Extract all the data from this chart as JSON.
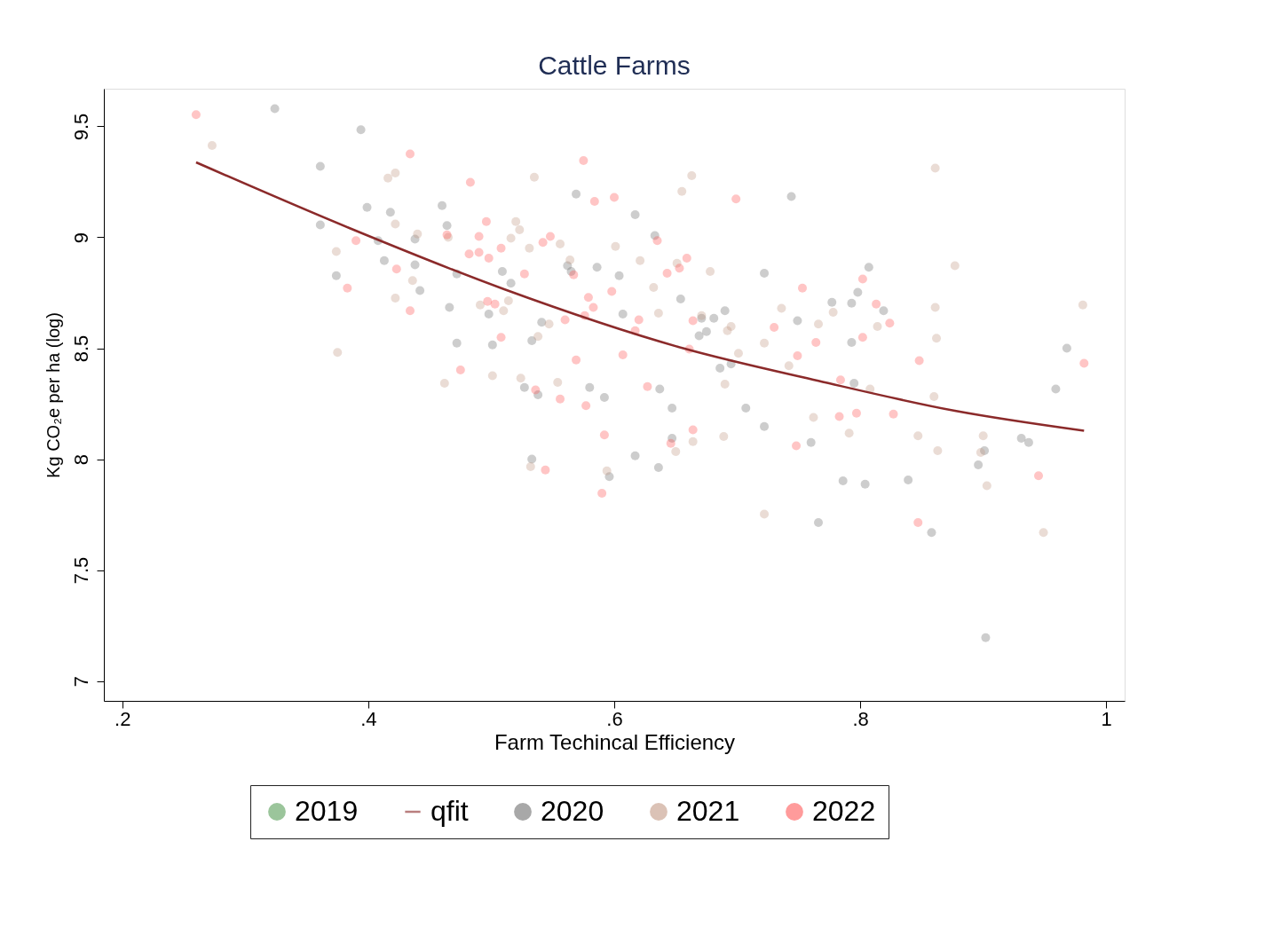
{
  "chart_data": {
    "type": "scatter",
    "title": "Cattle Farms",
    "xlabel": "Farm Techincal Efficiency",
    "ylabel": "Kg CO₂e per ha (log)",
    "xlim": [
      0.185,
      1.015
    ],
    "ylim": [
      6.91,
      9.67
    ],
    "xticks": [
      {
        "value": 0.2,
        "label": ".2"
      },
      {
        "value": 0.4,
        "label": ".4"
      },
      {
        "value": 0.6,
        "label": ".6"
      },
      {
        "value": 0.8,
        "label": ".8"
      },
      {
        "value": 1,
        "label": "1"
      }
    ],
    "yticks": [
      {
        "value": 7,
        "label": "7"
      },
      7.5,
      {
        "value": 8,
        "label": "8"
      },
      8.5,
      {
        "value": 9,
        "label": "9"
      },
      9.5
    ],
    "grid": false,
    "legend": "bottom",
    "series": [
      {
        "name": "2019",
        "color": "#5aa05a",
        "marker": "circle"
      },
      {
        "name": "qfit",
        "type": "line",
        "color": "#8b2a2a",
        "x": [
          0.26,
          0.385,
          0.51,
          0.656,
          0.766,
          0.877,
          0.982
        ],
        "values": [
          9.338,
          9.041,
          8.767,
          8.5,
          8.353,
          8.218,
          8.128
        ]
      },
      {
        "name": "2020",
        "color": "#707070",
        "marker": "circle",
        "x": [
          0.324,
          0.394,
          0.361,
          0.361,
          0.374,
          0.399,
          0.418,
          0.408,
          0.413,
          0.438,
          0.438,
          0.442,
          0.46,
          0.464,
          0.472,
          0.466,
          0.472,
          0.498,
          0.501,
          0.509,
          0.516,
          0.569,
          0.562,
          0.565,
          0.586,
          0.604,
          0.617,
          0.633,
          0.607,
          0.654,
          0.671,
          0.669,
          0.675,
          0.681,
          0.69,
          0.686,
          0.695,
          0.722,
          0.744,
          0.749,
          0.777,
          0.793,
          0.798,
          0.807,
          0.819,
          0.793,
          0.795,
          0.786,
          0.804,
          0.839,
          0.858,
          0.896,
          0.901,
          0.902,
          0.931,
          0.937,
          0.959,
          0.968,
          0.527,
          0.538,
          0.533,
          0.541,
          0.533,
          0.58,
          0.592,
          0.596,
          0.617,
          0.636,
          0.637,
          0.647,
          0.647,
          0.707,
          0.722,
          0.76,
          0.766
        ],
        "values": [
          9.58,
          9.485,
          9.32,
          9.056,
          8.827,
          9.135,
          9.113,
          8.985,
          8.895,
          8.992,
          8.876,
          8.76,
          9.143,
          9.053,
          8.835,
          8.684,
          8.523,
          8.654,
          8.515,
          8.846,
          8.793,
          9.195,
          8.872,
          8.846,
          8.865,
          8.827,
          9.102,
          9.008,
          8.654,
          8.722,
          8.635,
          8.556,
          8.575,
          8.635,
          8.669,
          8.41,
          8.429,
          8.838,
          9.184,
          8.624,
          8.707,
          8.703,
          8.752,
          8.865,
          8.669,
          8.526,
          8.342,
          7.902,
          7.887,
          7.906,
          7.669,
          7.974,
          8.038,
          7.195,
          8.094,
          8.075,
          8.316,
          8.5,
          8.323,
          8.29,
          8.0,
          8.617,
          8.534,
          8.323,
          8.278,
          7.921,
          8.015,
          7.962,
          8.316,
          8.23,
          8.094,
          8.23,
          8.147,
          8.075,
          7.714
        ]
      },
      {
        "name": "2021",
        "color": "#c49a86",
        "marker": "circle",
        "x": [
          0.273,
          0.416,
          0.422,
          0.422,
          0.44,
          0.436,
          0.422,
          0.374,
          0.375,
          0.462,
          0.465,
          0.491,
          0.501,
          0.51,
          0.514,
          0.516,
          0.52,
          0.523,
          0.531,
          0.535,
          0.524,
          0.538,
          0.547,
          0.556,
          0.554,
          0.564,
          0.601,
          0.621,
          0.632,
          0.636,
          0.651,
          0.655,
          0.663,
          0.678,
          0.671,
          0.692,
          0.695,
          0.701,
          0.69,
          0.689,
          0.65,
          0.664,
          0.594,
          0.532,
          0.722,
          0.736,
          0.742,
          0.766,
          0.778,
          0.762,
          0.791,
          0.808,
          0.814,
          0.861,
          0.877,
          0.861,
          0.862,
          0.86,
          0.847,
          0.863,
          0.9,
          0.898,
          0.903,
          0.981,
          0.949,
          0.722
        ],
        "values": [
          9.414,
          9.267,
          9.29,
          9.06,
          9.015,
          8.805,
          8.726,
          8.936,
          8.481,
          8.342,
          9.0,
          8.695,
          8.376,
          8.669,
          8.714,
          8.996,
          9.071,
          9.034,
          8.951,
          9.271,
          8.365,
          8.553,
          8.609,
          8.97,
          8.346,
          8.898,
          8.959,
          8.895,
          8.774,
          8.658,
          8.883,
          9.207,
          9.278,
          8.846,
          8.647,
          8.579,
          8.598,
          8.477,
          8.338,
          8.102,
          8.034,
          8.079,
          7.947,
          7.966,
          8.523,
          8.68,
          8.421,
          8.609,
          8.662,
          8.188,
          8.117,
          8.316,
          8.598,
          9.312,
          8.872,
          8.684,
          8.545,
          8.282,
          8.105,
          8.038,
          8.105,
          8.03,
          7.88,
          8.695,
          7.669,
          7.752
        ]
      },
      {
        "name": "2022",
        "color": "#ff5a5a",
        "marker": "circle",
        "x": [
          0.26,
          0.434,
          0.39,
          0.383,
          0.423,
          0.434,
          0.475,
          0.464,
          0.483,
          0.482,
          0.49,
          0.49,
          0.496,
          0.498,
          0.508,
          0.503,
          0.497,
          0.508,
          0.527,
          0.542,
          0.548,
          0.575,
          0.584,
          0.6,
          0.567,
          0.56,
          0.579,
          0.583,
          0.576,
          0.598,
          0.569,
          0.607,
          0.62,
          0.617,
          0.635,
          0.643,
          0.653,
          0.659,
          0.664,
          0.661,
          0.627,
          0.577,
          0.556,
          0.536,
          0.544,
          0.592,
          0.59,
          0.646,
          0.664,
          0.699,
          0.73,
          0.753,
          0.749,
          0.764,
          0.748,
          0.784,
          0.783,
          0.797,
          0.802,
          0.802,
          0.813,
          0.824,
          0.827,
          0.848,
          0.847,
          0.945,
          0.982
        ],
        "values": [
          9.553,
          9.376,
          8.985,
          8.771,
          8.857,
          8.669,
          8.402,
          9.011,
          9.248,
          8.925,
          9.004,
          8.932,
          9.071,
          8.906,
          8.951,
          8.699,
          8.711,
          8.549,
          8.835,
          8.977,
          9.004,
          9.346,
          9.162,
          9.18,
          8.831,
          8.628,
          8.729,
          8.684,
          8.647,
          8.756,
          8.447,
          8.47,
          8.628,
          8.579,
          8.985,
          8.838,
          8.861,
          8.906,
          8.624,
          8.496,
          8.327,
          8.241,
          8.271,
          8.312,
          7.951,
          8.109,
          7.846,
          8.071,
          8.132,
          9.173,
          8.594,
          8.771,
          8.466,
          8.526,
          8.06,
          8.357,
          8.192,
          8.207,
          8.549,
          8.812,
          8.699,
          8.613,
          8.203,
          8.444,
          7.714,
          7.925,
          8.432
        ]
      }
    ]
  }
}
